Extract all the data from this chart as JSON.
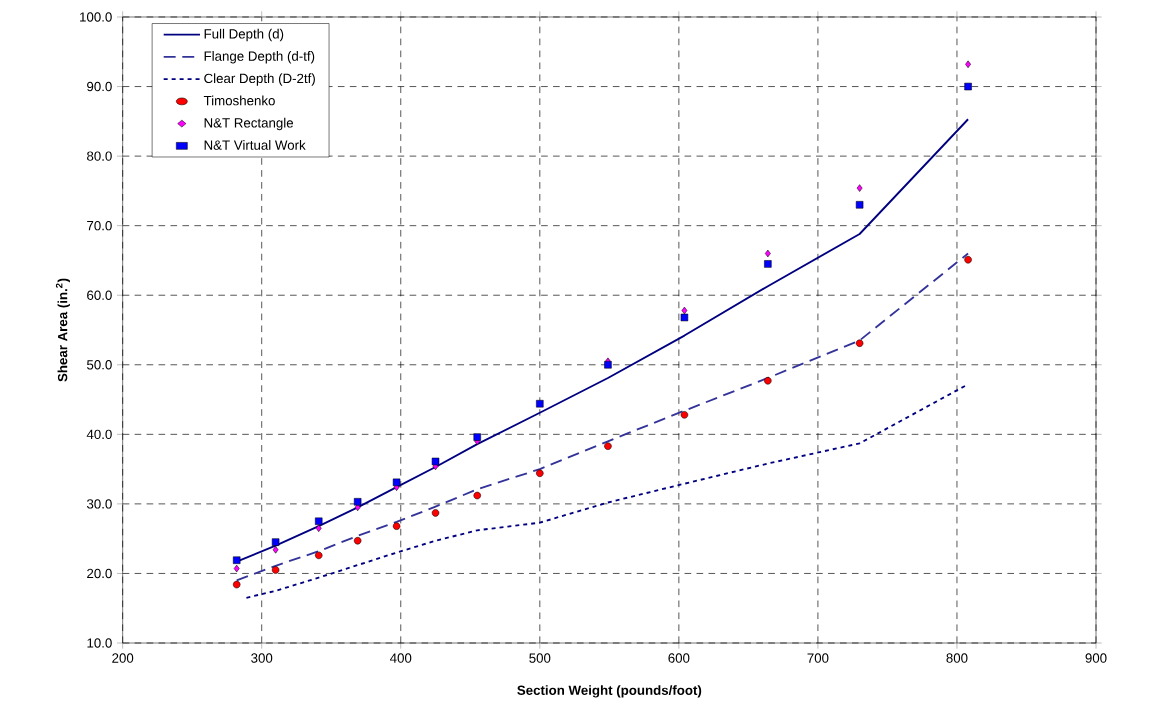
{
  "chart_data": {
    "type": "scatter",
    "xlabel": "Section Weight (pounds/foot)",
    "ylabel": "Shear Area (in.$^{2}$)",
    "xlim": [
      200,
      900
    ],
    "xticks": [
      200,
      300,
      400,
      500,
      600,
      700,
      800,
      900
    ],
    "ylim": [
      10,
      100
    ],
    "yticks": [
      {
        "value": 10,
        "label": "10.0"
      },
      {
        "value": 20,
        "label": "20.0"
      },
      {
        "value": 30,
        "label": "30.0"
      },
      {
        "value": 40,
        "label": "40.0"
      },
      {
        "value": 50,
        "label": "50.0"
      },
      {
        "value": 60,
        "label": "60.0"
      },
      {
        "value": 70,
        "label": "70.0"
      },
      {
        "value": 80,
        "label": "80.0"
      },
      {
        "value": 90,
        "label": "90.0"
      },
      {
        "value": 100,
        "label": "100.0"
      }
    ],
    "grid": true,
    "legend": "top left",
    "series": [
      {
        "name": "Full Depth (d)",
        "type": "line",
        "line_style": "solid",
        "color": "#000080",
        "x": [
          282,
          310,
          341,
          369,
          397,
          425,
          455,
          500,
          549,
          604,
          664,
          730,
          808
        ],
        "values": [
          21.7,
          24.0,
          26.8,
          29.5,
          32.4,
          35.3,
          38.6,
          43.1,
          48.1,
          54.2,
          61.3,
          68.8,
          85.3
        ]
      },
      {
        "name": "Flange Depth (d-tf)",
        "type": "line",
        "line_style": "dashed",
        "color": "#333399",
        "x": [
          282,
          310,
          341,
          369,
          397,
          425,
          455,
          500,
          549,
          604,
          664,
          730,
          808
        ],
        "values": [
          19.0,
          21.1,
          23.2,
          25.4,
          27.4,
          29.6,
          32.1,
          35.0,
          39.0,
          43.4,
          48.1,
          53.5,
          66.0
        ]
      },
      {
        "name": "Clear Depth (D-2tf)",
        "type": "line",
        "line_style": "dotted",
        "color": "#000080",
        "x": [
          289,
          310,
          341,
          369,
          397,
          425,
          455,
          500,
          549,
          604,
          664,
          730,
          808
        ],
        "values": [
          16.5,
          17.5,
          19.4,
          21.2,
          23.0,
          24.7,
          26.2,
          27.3,
          30.2,
          32.9,
          35.8,
          38.7,
          47.2
        ]
      },
      {
        "name": "Timoshenko",
        "marker": "circle",
        "color": "#ff0000",
        "x": [
          282,
          310,
          341,
          369,
          397,
          425,
          455,
          500,
          549,
          604,
          664,
          730,
          808
        ],
        "values": [
          18.4,
          20.5,
          22.6,
          24.7,
          26.8,
          28.7,
          31.2,
          34.4,
          38.3,
          42.8,
          47.7,
          53.1,
          65.1
        ]
      },
      {
        "name": "N&T Rectangle",
        "marker": "diamond",
        "color": "#ff00ff",
        "x": [
          282,
          310,
          341,
          369,
          397,
          425,
          455,
          549,
          604,
          664,
          730,
          808
        ],
        "values": [
          20.7,
          23.4,
          26.5,
          29.5,
          32.4,
          35.4,
          39.0,
          50.5,
          57.8,
          66.0,
          75.4,
          93.2
        ]
      },
      {
        "name": "N&T Virtual Work",
        "marker": "square",
        "color": "#0000ff",
        "x": [
          282,
          310,
          341,
          369,
          397,
          425,
          455,
          500,
          549,
          604,
          664,
          730,
          808
        ],
        "values": [
          21.9,
          24.5,
          27.5,
          30.3,
          33.1,
          36.1,
          39.6,
          44.4,
          50.0,
          56.8,
          64.5,
          73.0,
          90.0
        ]
      }
    ]
  }
}
